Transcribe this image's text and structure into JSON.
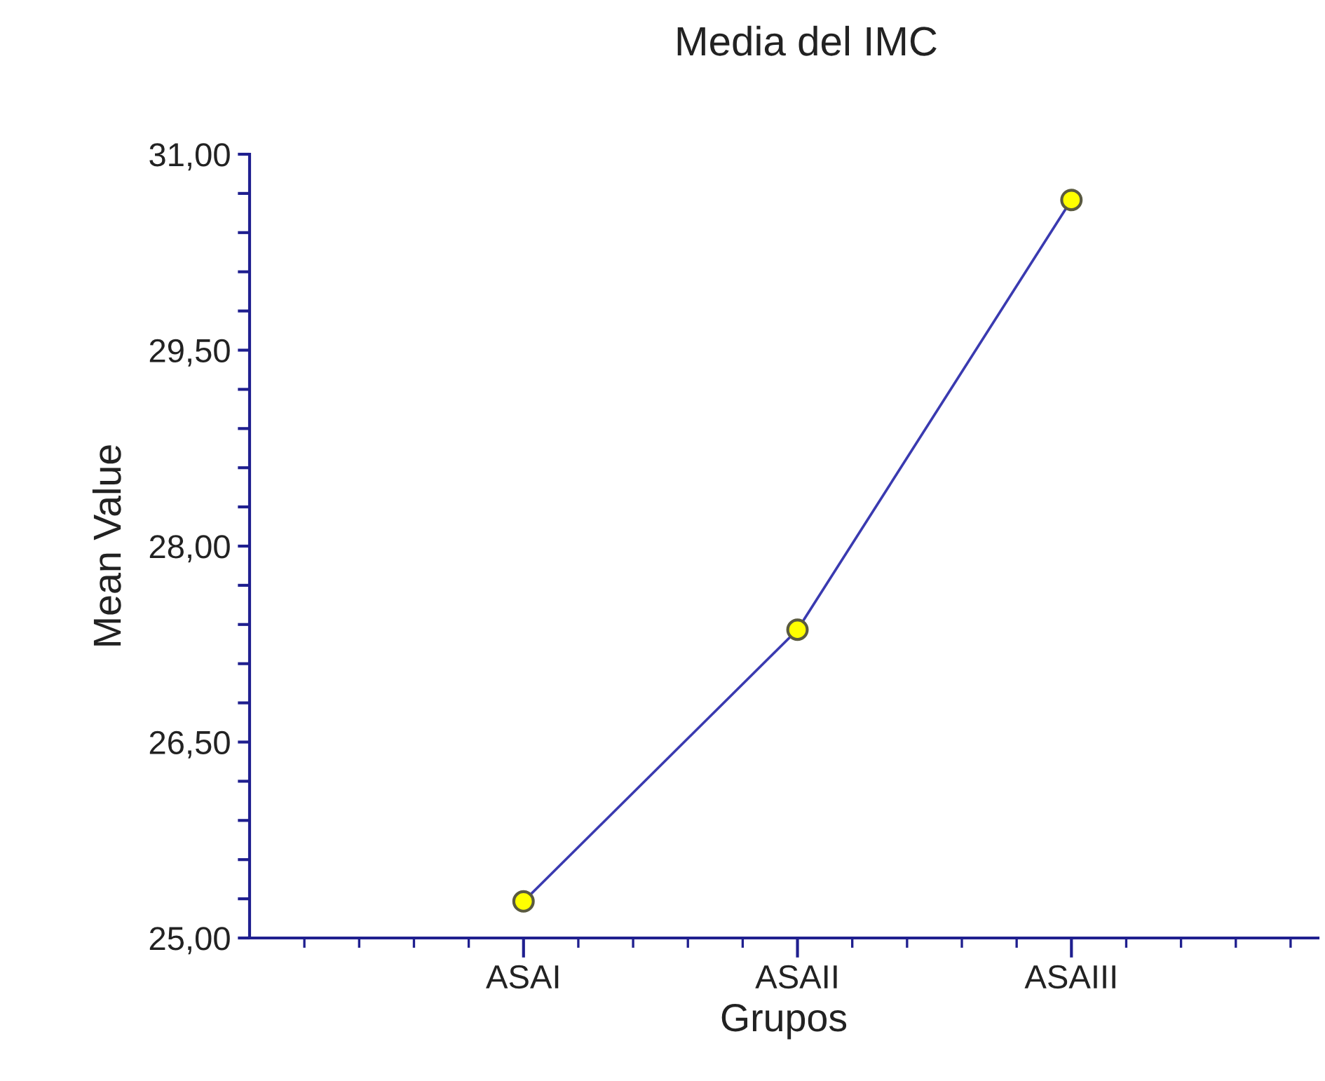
{
  "chart_data": {
    "type": "line",
    "title": "Media del IMC",
    "xlabel": "Grupos",
    "ylabel": "Mean Value",
    "categories": [
      "ASAI",
      "ASAII",
      "ASAIII"
    ],
    "series": [
      {
        "color": "#3a3ab0",
        "values": [
          25.28,
          27.36,
          30.65
        ]
      }
    ],
    "marker": "circle",
    "line_style": "solid",
    "grid": false,
    "legend": false,
    "ylim": [
      25,
      31
    ],
    "yticks": [
      {
        "value": 25,
        "label": "25,00"
      },
      {
        "value": 25.3,
        "label": null
      },
      {
        "value": 25.6,
        "label": null
      },
      {
        "value": 25.9,
        "label": null
      },
      {
        "value": 26.2,
        "label": null
      },
      {
        "value": 26.5,
        "label": "26,50"
      },
      {
        "value": 26.8,
        "label": null
      },
      {
        "value": 27.1,
        "label": null
      },
      {
        "value": 27.4,
        "label": null
      },
      {
        "value": 27.7,
        "label": null
      },
      {
        "value": 28,
        "label": "28,00"
      },
      {
        "value": 28.3,
        "label": null
      },
      {
        "value": 28.6,
        "label": null
      },
      {
        "value": 28.9,
        "label": null
      },
      {
        "value": 29.2,
        "label": null
      },
      {
        "value": 29.5,
        "label": "29,50"
      },
      {
        "value": 29.8,
        "label": null
      },
      {
        "value": 30.1,
        "label": null
      },
      {
        "value": 30.4,
        "label": null
      },
      {
        "value": 30.7,
        "label": null
      },
      {
        "value": 31,
        "label": "31,00"
      }
    ]
  }
}
